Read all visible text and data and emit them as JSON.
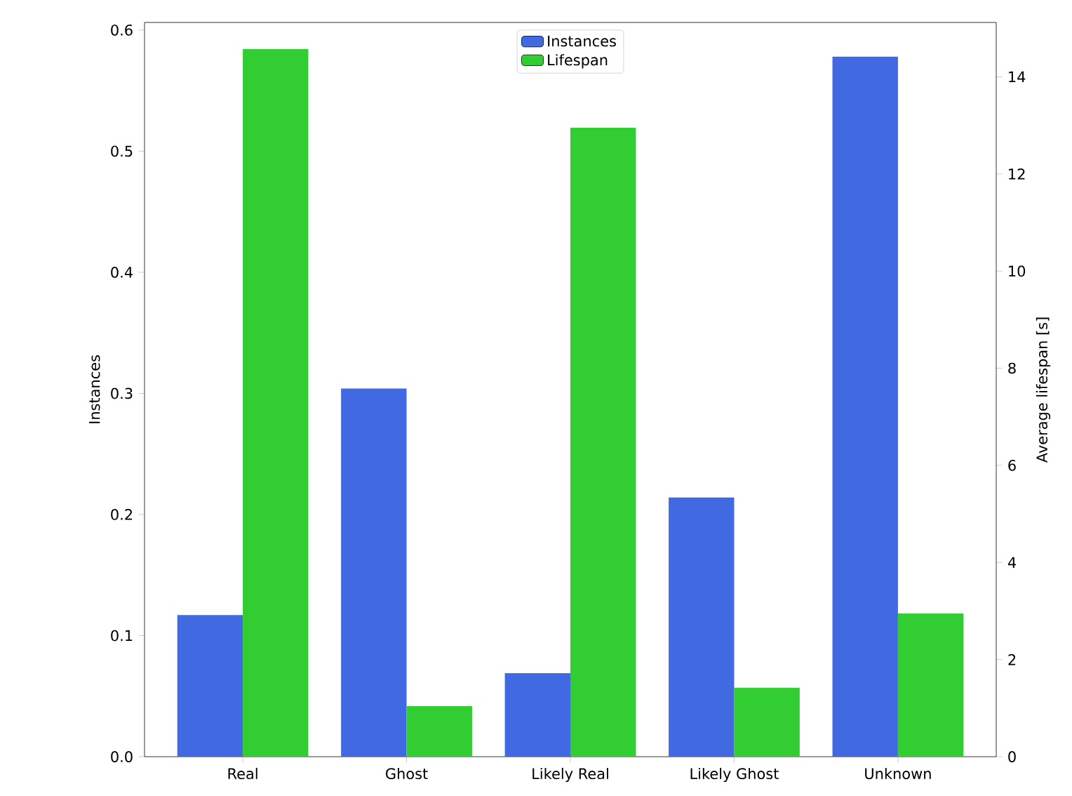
{
  "chart_data": {
    "type": "bar",
    "categories": [
      "Real",
      "Ghost",
      "Likely Real",
      "Likely Ghost",
      "Unknown"
    ],
    "ylabel": "Instances",
    "y2label": "Average lifespan [s]",
    "series": [
      {
        "name": "Instances",
        "color": "#4169e1",
        "values": [
          0.117,
          0.304,
          0.069,
          0.214,
          0.578
        ]
      },
      {
        "name": "Lifespan",
        "color": "#32cd32",
        "axis": "y2",
        "values": [
          14.57,
          1.04,
          12.95,
          1.42,
          2.95
        ]
      }
    ],
    "ylim": [
      0,
      0.6063
    ],
    "yticks": [
      {
        "value": 0,
        "label": "0.0"
      },
      0.1,
      0.2,
      0.3,
      0.4,
      0.5,
      0.6
    ],
    "y2lim": [
      0,
      15.12
    ],
    "y2ticks": [
      0,
      2,
      4,
      6,
      8,
      10,
      12,
      14
    ],
    "legend": "top"
  }
}
